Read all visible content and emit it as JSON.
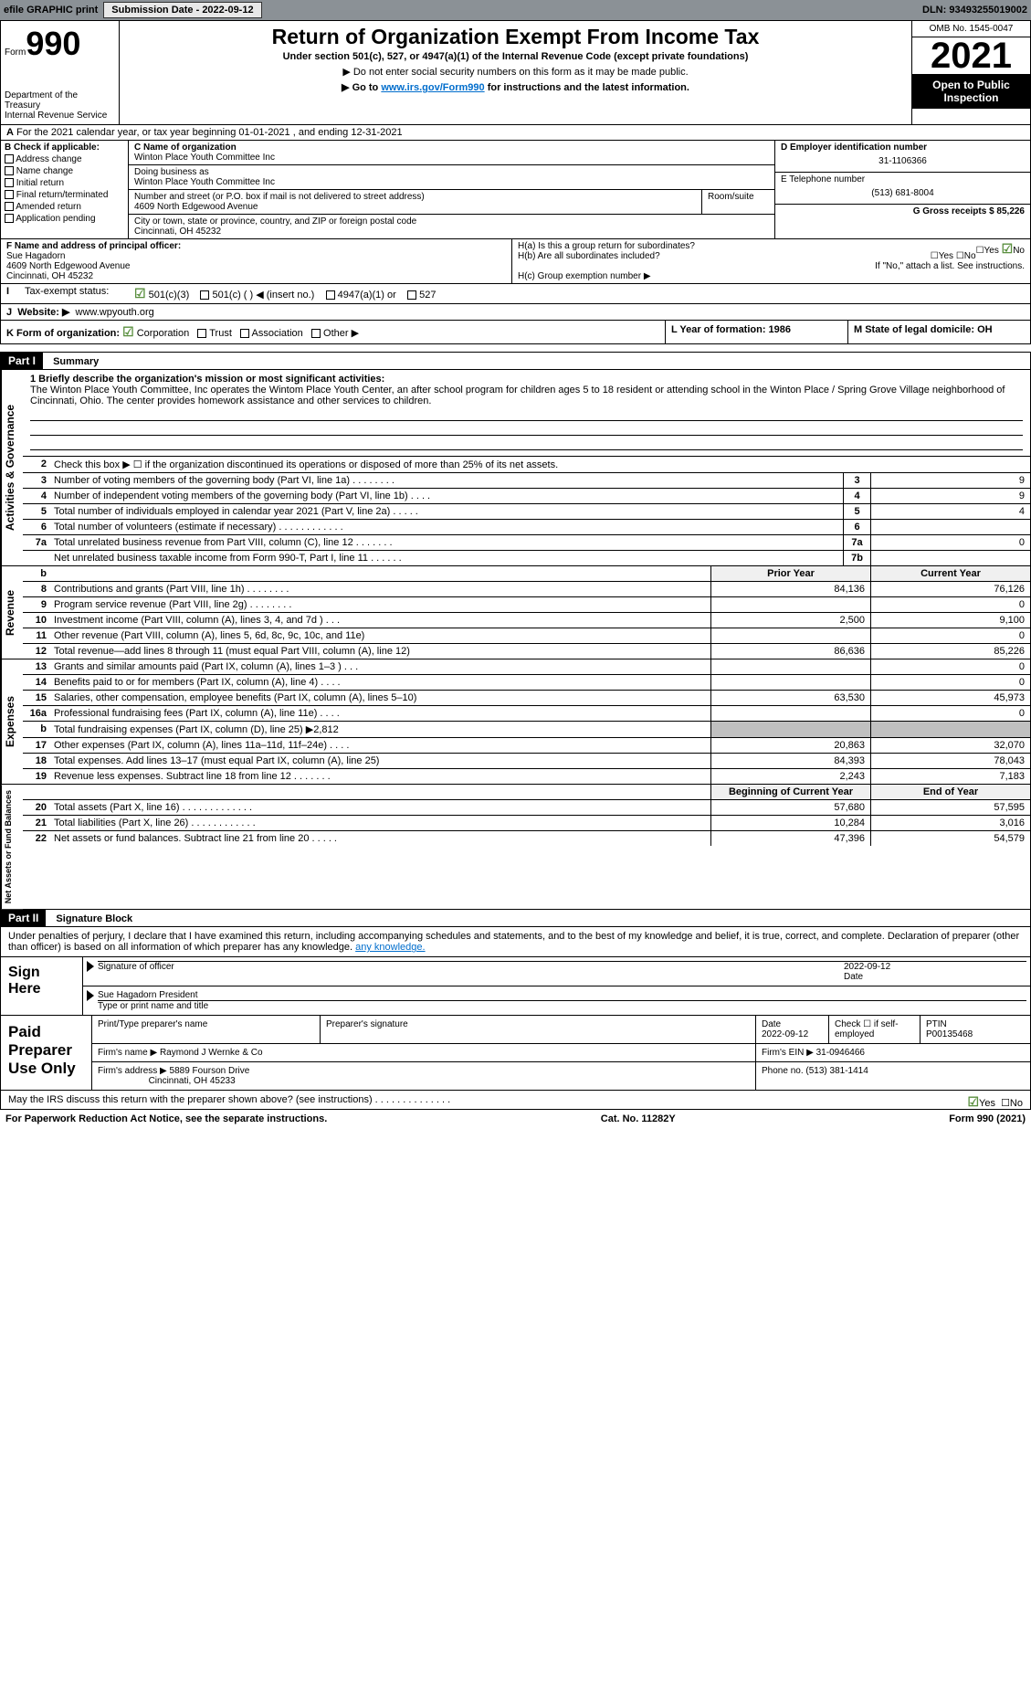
{
  "topbar": {
    "efile": "efile GRAPHIC print",
    "submission_label": "Submission Date - 2022-09-12",
    "dln": "DLN: 93493255019002"
  },
  "header": {
    "form_label": "Form",
    "form_number": "990",
    "dept": "Department of the Treasury",
    "irs": "Internal Revenue Service",
    "title": "Return of Organization Exempt From Income Tax",
    "subtitle": "Under section 501(c), 527, or 4947(a)(1) of the Internal Revenue Code (except private foundations)",
    "note1": "▶ Do not enter social security numbers on this form as it may be made public.",
    "note2_pre": "▶ Go to ",
    "note2_link": "www.irs.gov/Form990",
    "note2_post": " for instructions and the latest information.",
    "omb": "OMB No. 1545-0047",
    "year": "2021",
    "inspect": "Open to Public Inspection"
  },
  "row_a": {
    "text": "For the 2021 calendar year, or tax year beginning 01-01-2021    , and ending 12-31-2021"
  },
  "col_b": {
    "title": "B Check if applicable:",
    "items": [
      "Address change",
      "Name change",
      "Initial return",
      "Final return/terminated",
      "Amended return",
      "Application pending"
    ]
  },
  "col_c": {
    "name_label": "C Name of organization",
    "name": "Winton Place Youth Committee Inc",
    "dba_label": "Doing business as",
    "dba": "Winton Place Youth Committee Inc",
    "street_label": "Number and street (or P.O. box if mail is not delivered to street address)",
    "room_label": "Room/suite",
    "street": "4609 North Edgewood Avenue",
    "city_label": "City or town, state or province, country, and ZIP or foreign postal code",
    "city": "Cincinnati, OH  45232"
  },
  "col_d": {
    "ein_label": "D Employer identification number",
    "ein": "31-1106366",
    "phone_label": "E Telephone number",
    "phone": "(513) 681-8004",
    "gross_label": "G Gross receipts $ 85,226"
  },
  "col_f": {
    "label": "F  Name and address of principal officer:",
    "name": "Sue Hagadorn",
    "addr1": "4609 North Edgewood Avenue",
    "addr2": "Cincinnati, OH  45232"
  },
  "col_h": {
    "ha": "H(a)  Is this a group return for subordinates?",
    "hb": "H(b)  Are all subordinates included?",
    "hb_note": "If \"No,\" attach a list. See instructions.",
    "hc": "H(c)  Group exemption number ▶"
  },
  "row_i": {
    "label": "I",
    "text": "Tax-exempt status:",
    "opts": [
      "501(c)(3)",
      "501(c) (  ) ◀ (insert no.)",
      "4947(a)(1) or",
      "527"
    ]
  },
  "row_j": {
    "label": "J",
    "text": "Website: ▶",
    "url": "www.wpyouth.org"
  },
  "row_k": {
    "label": "K Form of organization:",
    "opts": [
      "Corporation",
      "Trust",
      "Association",
      "Other ▶"
    ]
  },
  "row_l": {
    "text": "L Year of formation: 1986"
  },
  "row_m": {
    "text": "M State of legal domicile: OH"
  },
  "part1": {
    "num": "Part I",
    "title": "Summary",
    "line1_label": "1  Briefly describe the organization's mission or most significant activities:",
    "line1_text": "The Winton Place Youth Committee, Inc operates the Wintom Place Youth Center, an after school program for children ages 5 to 18 resident or attending school in the Winton Place / Spring Grove Village neighborhood of Cincinnati, Ohio. The center provides homework assistance and other services to children.",
    "line2": "Check this box ▶ ☐  if the organization discontinued its operations or disposed of more than 25% of its net assets.",
    "tabs": {
      "gov": "Activities & Governance",
      "rev": "Revenue",
      "exp": "Expenses",
      "net": "Net Assets or Fund Balances"
    },
    "gov_lines": [
      {
        "n": "3",
        "t": "Number of voting members of the governing body (Part VI, line 1a)   .   .   .   .   .   .   .   .",
        "b": "3",
        "v": "9"
      },
      {
        "n": "4",
        "t": "Number of independent voting members of the governing body (Part VI, line 1b)   .   .   .   .",
        "b": "4",
        "v": "9"
      },
      {
        "n": "5",
        "t": "Total number of individuals employed in calendar year 2021 (Part V, line 2a)   .   .   .   .   .",
        "b": "5",
        "v": "4"
      },
      {
        "n": "6",
        "t": "Total number of volunteers (estimate if necessary)   .   .   .   .   .   .   .   .   .   .   .   .",
        "b": "6",
        "v": ""
      },
      {
        "n": "7a",
        "t": "Total unrelated business revenue from Part VIII, column (C), line 12   .   .   .   .   .   .   .",
        "b": "7a",
        "v": "0"
      },
      {
        "n": "",
        "t": "Net unrelated business taxable income from Form 990-T, Part I, line 11   .   .   .   .   .   .",
        "b": "7b",
        "v": ""
      }
    ],
    "rev_hdr": {
      "prior": "Prior Year",
      "current": "Current Year"
    },
    "rev_lines": [
      {
        "n": "8",
        "t": "Contributions and grants (Part VIII, line 1h)   .   .   .   .   .   .   .   .",
        "p": "84,136",
        "c": "76,126"
      },
      {
        "n": "9",
        "t": "Program service revenue (Part VIII, line 2g)   .   .   .   .   .   .   .   .",
        "p": "",
        "c": "0"
      },
      {
        "n": "10",
        "t": "Investment income (Part VIII, column (A), lines 3, 4, and 7d )   .   .   .",
        "p": "2,500",
        "c": "9,100"
      },
      {
        "n": "11",
        "t": "Other revenue (Part VIII, column (A), lines 5, 6d, 8c, 9c, 10c, and 11e)",
        "p": "",
        "c": "0"
      },
      {
        "n": "12",
        "t": "Total revenue—add lines 8 through 11 (must equal Part VIII, column (A), line 12)",
        "p": "86,636",
        "c": "85,226"
      }
    ],
    "exp_lines": [
      {
        "n": "13",
        "t": "Grants and similar amounts paid (Part IX, column (A), lines 1–3 )   .   .   .",
        "p": "",
        "c": "0"
      },
      {
        "n": "14",
        "t": "Benefits paid to or for members (Part IX, column (A), line 4)   .   .   .   .",
        "p": "",
        "c": "0"
      },
      {
        "n": "15",
        "t": "Salaries, other compensation, employee benefits (Part IX, column (A), lines 5–10)",
        "p": "63,530",
        "c": "45,973"
      },
      {
        "n": "16a",
        "t": "Professional fundraising fees (Part IX, column (A), line 11e)   .   .   .   .",
        "p": "",
        "c": "0"
      },
      {
        "n": "b",
        "t": "Total fundraising expenses (Part IX, column (D), line 25) ▶2,812",
        "p": "shade",
        "c": "shade"
      },
      {
        "n": "17",
        "t": "Other expenses (Part IX, column (A), lines 11a–11d, 11f–24e)   .   .   .   .",
        "p": "20,863",
        "c": "32,070"
      },
      {
        "n": "18",
        "t": "Total expenses. Add lines 13–17 (must equal Part IX, column (A), line 25)",
        "p": "84,393",
        "c": "78,043"
      },
      {
        "n": "19",
        "t": "Revenue less expenses. Subtract line 18 from line 12  .   .   .   .   .   .   .",
        "p": "2,243",
        "c": "7,183"
      }
    ],
    "net_hdr": {
      "prior": "Beginning of Current Year",
      "current": "End of Year"
    },
    "net_lines": [
      {
        "n": "20",
        "t": "Total assets (Part X, line 16)  .   .   .   .   .   .   .   .   .   .   .   .   .",
        "p": "57,680",
        "c": "57,595"
      },
      {
        "n": "21",
        "t": "Total liabilities (Part X, line 26)  .   .   .   .   .   .   .   .   .   .   .   .",
        "p": "10,284",
        "c": "3,016"
      },
      {
        "n": "22",
        "t": "Net assets or fund balances. Subtract line 21 from line 20  .   .   .   .   .",
        "p": "47,396",
        "c": "54,579"
      }
    ]
  },
  "part2": {
    "num": "Part II",
    "title": "Signature Block",
    "disclaim": "Under penalties of perjury, I declare that I have examined this return, including accompanying schedules and statements, and to the best of my knowledge and belief, it is true, correct, and complete. Declaration of preparer (other than officer) is based on all information of which preparer has any knowledge.",
    "sign_here": "Sign Here",
    "sig_officer": "Signature of officer",
    "sig_date": "2022-09-12",
    "date_label": "Date",
    "name_title": "Sue Hagadorn  President",
    "name_label": "Type or print name and title",
    "paid_prep": "Paid Preparer Use Only",
    "prep_name_label": "Print/Type preparer's name",
    "prep_sig_label": "Preparer's signature",
    "prep_date": "2022-09-12",
    "prep_check": "Check ☐ if self-employed",
    "ptin_label": "PTIN",
    "ptin": "P00135468",
    "firm_name_label": "Firm's name    ▶",
    "firm_name": "Raymond J Wernke & Co",
    "firm_ein_label": "Firm's EIN ▶",
    "firm_ein": "31-0946466",
    "firm_addr_label": "Firm's address ▶",
    "firm_addr1": "5889 Fourson Drive",
    "firm_addr2": "Cincinnati, OH  45233",
    "firm_phone_label": "Phone no.",
    "firm_phone": "(513) 381-1414",
    "may_irs": "May the IRS discuss this return with the preparer shown above? (see instructions)   .   .   .   .   .   .   .   .   .   .   .   .   .   ."
  },
  "footer": {
    "pra": "For Paperwork Reduction Act Notice, see the separate instructions.",
    "cat": "Cat. No. 11282Y",
    "form": "Form 990 (2021)"
  }
}
